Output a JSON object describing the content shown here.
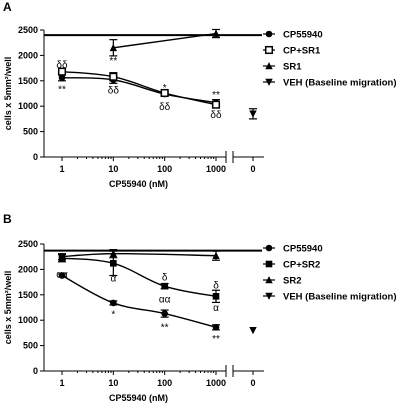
{
  "chart_data": [
    {
      "panel_label": "A",
      "type": "line",
      "xlabel": "CP55940 (nM)",
      "ylabel": "cells x 5mm²/well",
      "xscale": "log",
      "x_ticks": [
        "1",
        "10",
        "100",
        "1000",
        "0"
      ],
      "ylim": [
        0,
        2500
      ],
      "y_ticks": [
        "0",
        "500",
        "1000",
        "1500",
        "2000",
        "2500"
      ],
      "baseline": 2400,
      "legend_position": "right",
      "series": [
        {
          "name": "CP55940",
          "marker": "circle",
          "x": [
            1,
            10,
            100,
            1000
          ],
          "y": [
            1560,
            1520,
            1240,
            1070
          ],
          "err": [
            60,
            70,
            35,
            60
          ]
        },
        {
          "name": "CP+SR1",
          "marker": "square-open",
          "x": [
            1,
            10,
            100,
            1000
          ],
          "y": [
            1680,
            1580,
            1260,
            1030
          ],
          "err": [
            50,
            80,
            30,
            60
          ]
        },
        {
          "name": "SR1",
          "marker": "triangle-up",
          "x": [
            10,
            1000
          ],
          "y": [
            2150,
            2430
          ],
          "err": [
            160,
            80
          ]
        },
        {
          "name": "VEH (Baseline migration)",
          "marker": "triangle-down",
          "x": [
            "0"
          ],
          "y": [
            850
          ],
          "err": [
            100
          ]
        }
      ],
      "annotations": [
        {
          "text": "δδ",
          "x": 1,
          "y": 1830
        },
        {
          "text": "**",
          "x": 1,
          "y": 1350
        },
        {
          "text": "**",
          "x": 10,
          "y": 1910
        },
        {
          "text": "δδ",
          "x": 10,
          "y": 1330
        },
        {
          "text": "*",
          "x": 100,
          "y": 1380
        },
        {
          "text": "δδ",
          "x": 100,
          "y": 1000
        },
        {
          "text": "**",
          "x": 1000,
          "y": 1240
        },
        {
          "text": "δδ",
          "x": 1000,
          "y": 850
        }
      ]
    },
    {
      "panel_label": "B",
      "type": "line",
      "xlabel": "CP55940 (nM)",
      "ylabel": "cells x 5mm²/well",
      "xscale": "log",
      "x_ticks": [
        "1",
        "10",
        "100",
        "1000",
        "0"
      ],
      "ylim": [
        0,
        2500
      ],
      "y_ticks": [
        "0",
        "500",
        "1000",
        "1500",
        "2000",
        "2500"
      ],
      "baseline": 2370,
      "legend_position": "right",
      "series": [
        {
          "name": "CP55940",
          "marker": "circle",
          "x": [
            1,
            10,
            100,
            1000
          ],
          "y": [
            1880,
            1340,
            1130,
            860
          ],
          "err": [
            30,
            40,
            70,
            50
          ]
        },
        {
          "name": "CP+SR2",
          "marker": "square",
          "x": [
            1,
            10,
            100,
            1000
          ],
          "y": [
            2220,
            2120,
            1670,
            1470
          ],
          "err": [
            70,
            240,
            50,
            120
          ]
        },
        {
          "name": "SR2",
          "marker": "triangle-up",
          "x": [
            1,
            10,
            1000
          ],
          "y": [
            2250,
            2310,
            2270
          ],
          "err": [
            60,
            80,
            90
          ]
        },
        {
          "name": "VEH (Baseline migration)",
          "marker": "triangle-down",
          "x": [
            "0"
          ],
          "y": [
            800
          ],
          "err": [
            0
          ]
        }
      ],
      "annotations": [
        {
          "text": "αα",
          "x": 1,
          "y": 1920
        },
        {
          "text": "α",
          "x": 10,
          "y": 1840
        },
        {
          "text": "*",
          "x": 10,
          "y": 1130
        },
        {
          "text": "δ",
          "x": 100,
          "y": 1860
        },
        {
          "text": "αα",
          "x": 100,
          "y": 1430
        },
        {
          "text": "**",
          "x": 100,
          "y": 880
        },
        {
          "text": "δ",
          "x": 1000,
          "y": 1700
        },
        {
          "text": "α",
          "x": 1000,
          "y": 1260
        },
        {
          "text": "**",
          "x": 1000,
          "y": 650
        }
      ]
    }
  ]
}
